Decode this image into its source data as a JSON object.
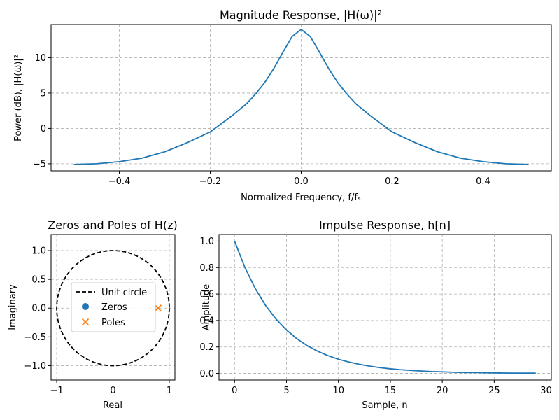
{
  "chart_data": [
    {
      "id": "magnitude",
      "type": "line",
      "title": "Magnitude Response, |H(ω)|²",
      "xlabel": "Normalized Frequency, f/fₛ",
      "ylabel": "Power (dB), |H(ω)|²",
      "xlim": [
        -0.55,
        0.55
      ],
      "ylim": [
        -6.0,
        14.7
      ],
      "xticks": [
        -0.4,
        -0.2,
        0.0,
        0.2,
        0.4
      ],
      "xtick_labels": [
        "−0.4",
        "−0.2",
        "0.0",
        "0.2",
        "0.4"
      ],
      "yticks": [
        -5,
        0,
        5,
        10
      ],
      "ytick_labels": [
        "−5",
        "0",
        "5",
        "10"
      ],
      "grid": true,
      "series": [
        {
          "color": "#1f77b4",
          "x": [
            -0.5,
            -0.45,
            -0.4,
            -0.35,
            -0.3,
            -0.25,
            -0.2,
            -0.15,
            -0.12,
            -0.1,
            -0.08,
            -0.06,
            -0.04,
            -0.02,
            0.0,
            0.02,
            0.04,
            0.06,
            0.08,
            0.1,
            0.12,
            0.15,
            0.2,
            0.25,
            0.3,
            0.35,
            0.4,
            0.45,
            0.5
          ],
          "y": [
            -5.1,
            -5.0,
            -4.7,
            -4.2,
            -3.3,
            -2.0,
            -0.5,
            1.9,
            3.5,
            4.9,
            6.5,
            8.5,
            10.8,
            13.0,
            14.0,
            13.0,
            10.8,
            8.5,
            6.5,
            4.9,
            3.5,
            1.9,
            -0.5,
            -2.0,
            -3.3,
            -4.2,
            -4.7,
            -5.0,
            -5.1
          ]
        }
      ]
    },
    {
      "id": "pole_zero",
      "type": "scatter",
      "title": "Zeros and Poles of H(z)",
      "xlabel": "Real",
      "ylabel": "Imaginary",
      "xlim": [
        -1.1,
        1.1
      ],
      "ylim": [
        -1.25,
        1.28
      ],
      "xticks": [
        -1,
        0,
        1
      ],
      "xtick_labels": [
        "−1",
        "0",
        "1"
      ],
      "yticks": [
        -1.0,
        -0.5,
        0.0,
        0.5,
        1.0
      ],
      "ytick_labels": [
        "−1.0",
        "−0.5",
        "0.0",
        "0.5",
        "1.0"
      ],
      "grid": true,
      "legend_position": "center",
      "unit_circle": {
        "name": "Unit circle",
        "radius": 1.0,
        "color": "#000000"
      },
      "series": [
        {
          "name": "Zeros",
          "marker": "circle",
          "color": "#1f77b4",
          "points": []
        },
        {
          "name": "Poles",
          "marker": "x",
          "color": "#ff7f0e",
          "points": [
            [
              0.8,
              0.0
            ]
          ]
        }
      ]
    },
    {
      "id": "impulse",
      "type": "line",
      "title": "Impulse Response, h[n]",
      "xlabel": "Sample, n",
      "ylabel": "Amplitude",
      "xlim": [
        -1.5,
        30.5
      ],
      "ylim": [
        -0.05,
        1.05
      ],
      "xticks": [
        0,
        5,
        10,
        15,
        20,
        25,
        30
      ],
      "xtick_labels": [
        "0",
        "5",
        "10",
        "15",
        "20",
        "25",
        "30"
      ],
      "yticks": [
        0.0,
        0.2,
        0.4,
        0.6,
        0.8,
        1.0
      ],
      "ytick_labels": [
        "0.0",
        "0.2",
        "0.4",
        "0.6",
        "0.8",
        "1.0"
      ],
      "grid": true,
      "series": [
        {
          "color": "#1f77b4",
          "decay": 0.8,
          "n": [
            0,
            1,
            2,
            3,
            4,
            5,
            6,
            7,
            8,
            9,
            10,
            11,
            12,
            13,
            14,
            15,
            16,
            17,
            18,
            19,
            20,
            21,
            22,
            23,
            24,
            25,
            26,
            27,
            28,
            29
          ],
          "y": [
            1.0,
            0.8,
            0.64,
            0.512,
            0.41,
            0.328,
            0.262,
            0.21,
            0.168,
            0.134,
            0.107,
            0.086,
            0.069,
            0.055,
            0.044,
            0.035,
            0.028,
            0.023,
            0.018,
            0.014,
            0.012,
            0.009,
            0.007,
            0.006,
            0.005,
            0.004,
            0.003,
            0.002,
            0.002,
            0.002
          ]
        }
      ]
    }
  ]
}
